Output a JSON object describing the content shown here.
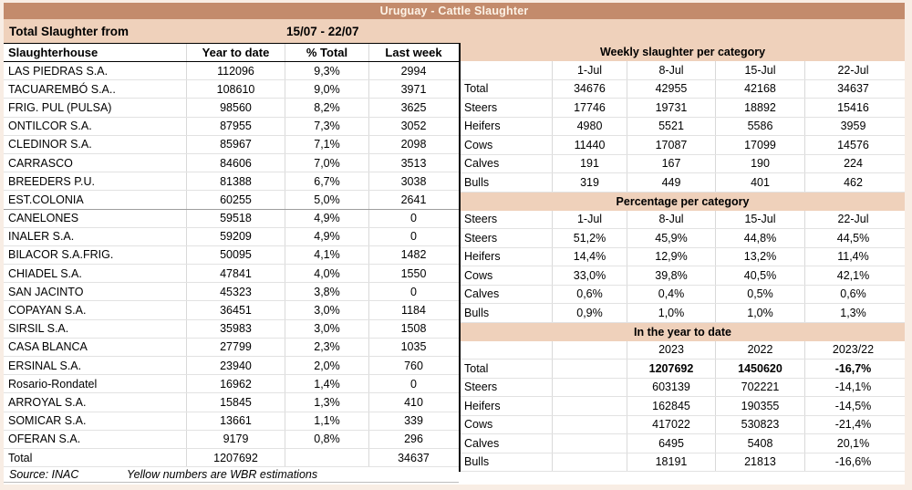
{
  "title": "Uruguay - Cattle Slaughter",
  "period": {
    "label": "Total Slaughter from",
    "range": "15/07 - 22/07"
  },
  "left_table": {
    "columns": [
      "Slaughterhouse",
      "Year to date",
      "% Total",
      "Last week"
    ],
    "rows": [
      [
        "LAS PIEDRAS S.A.",
        "112096",
        "9,3%",
        "2994"
      ],
      [
        "TACUAREMBÓ S.A..",
        "108610",
        "9,0%",
        "3971"
      ],
      [
        "FRIG. PUL (PULSA)",
        "98560",
        "8,2%",
        "3625"
      ],
      [
        "ONTILCOR S.A.",
        "87955",
        "7,3%",
        "3052"
      ],
      [
        "CLEDINOR S.A.",
        "85967",
        "7,1%",
        "2098"
      ],
      [
        "CARRASCO",
        "84606",
        "7,0%",
        "3513"
      ],
      [
        "BREEDERS P.U.",
        "81388",
        "6,7%",
        "3038"
      ],
      [
        "EST.COLONIA",
        "60255",
        "5,0%",
        "2641"
      ],
      [
        "CANELONES",
        "59518",
        "4,9%",
        "0"
      ],
      [
        "INALER S.A.",
        "59209",
        "4,9%",
        "0"
      ],
      [
        "BILACOR S.A.FRIG.",
        "50095",
        "4,1%",
        "1482"
      ],
      [
        "CHIADEL S.A.",
        "47841",
        "4,0%",
        "1550"
      ],
      [
        "SAN JACINTO",
        "45323",
        "3,8%",
        "0"
      ],
      [
        "COPAYAN S.A.",
        "36451",
        "3,0%",
        "1184"
      ],
      [
        "SIRSIL S.A.",
        "35983",
        "3,0%",
        "1508"
      ],
      [
        "CASA BLANCA",
        "27799",
        "2,3%",
        "1035"
      ],
      [
        "ERSINAL S.A.",
        "23940",
        "2,0%",
        "760"
      ],
      [
        "Rosario-Rondatel",
        "16962",
        "1,4%",
        "0"
      ],
      [
        "ARROYAL S.A.",
        "15845",
        "1,3%",
        "410"
      ],
      [
        "SOMICAR S.A.",
        "13661",
        "1,1%",
        "339"
      ],
      [
        "OFERAN S.A.",
        "9179",
        "0,8%",
        "296"
      ]
    ],
    "total": [
      "Total",
      "1207692",
      "",
      "34637"
    ],
    "source": "Source: INAC",
    "note": "Yellow numbers are WBR estimations"
  },
  "weekly_table": {
    "title": "Weekly slaughter per category",
    "columns": [
      "",
      "1-Jul",
      "8-Jul",
      "15-Jul",
      "22-Jul"
    ],
    "rows": [
      [
        "Total",
        "34676",
        "42955",
        "42168",
        "34637"
      ],
      [
        "Steers",
        "17746",
        "19731",
        "18892",
        "15416"
      ],
      [
        "Heifers",
        "4980",
        "5521",
        "5586",
        "3959"
      ],
      [
        "Cows",
        "11440",
        "17087",
        "17099",
        "14576"
      ],
      [
        "Calves",
        "191",
        "167",
        "190",
        "224"
      ],
      [
        "Bulls",
        "319",
        "449",
        "401",
        "462"
      ]
    ]
  },
  "percentage_table": {
    "title": "Percentage per category",
    "columns": [
      "Steers",
      "1-Jul",
      "8-Jul",
      "15-Jul",
      "22-Jul"
    ],
    "rows": [
      [
        "Steers",
        "51,2%",
        "45,9%",
        "44,8%",
        "44,5%"
      ],
      [
        "Heifers",
        "14,4%",
        "12,9%",
        "13,2%",
        "11,4%"
      ],
      [
        "Cows",
        "33,0%",
        "39,8%",
        "40,5%",
        "42,1%"
      ],
      [
        "Calves",
        "0,6%",
        "0,4%",
        "0,5%",
        "0,6%"
      ],
      [
        "Bulls",
        "0,9%",
        "1,0%",
        "1,0%",
        "1,3%"
      ]
    ]
  },
  "ytd_table": {
    "title": "In the year to date",
    "columns": [
      "",
      "",
      "2023",
      "2022",
      "2023/22"
    ],
    "rows": [
      [
        "Total",
        "",
        "1207692",
        "1450620",
        "-16,7%"
      ],
      [
        "Steers",
        "",
        "603139",
        "702221",
        "-14,1%"
      ],
      [
        "Heifers",
        "",
        "162845",
        "190355",
        "-14,5%"
      ],
      [
        "Cows",
        "",
        "417022",
        "530823",
        "-21,4%"
      ],
      [
        "Calves",
        "",
        "6495",
        "5408",
        "20,1%"
      ],
      [
        "Bulls",
        "",
        "18191",
        "21813",
        "-16,6%"
      ]
    ]
  },
  "colors": {
    "title_bar_bg": "#C38B6C",
    "title_text": "#FDF3E7",
    "band_bg": "#EFD1BB",
    "divider": "#000000",
    "gridline": "#E2E2E2"
  }
}
